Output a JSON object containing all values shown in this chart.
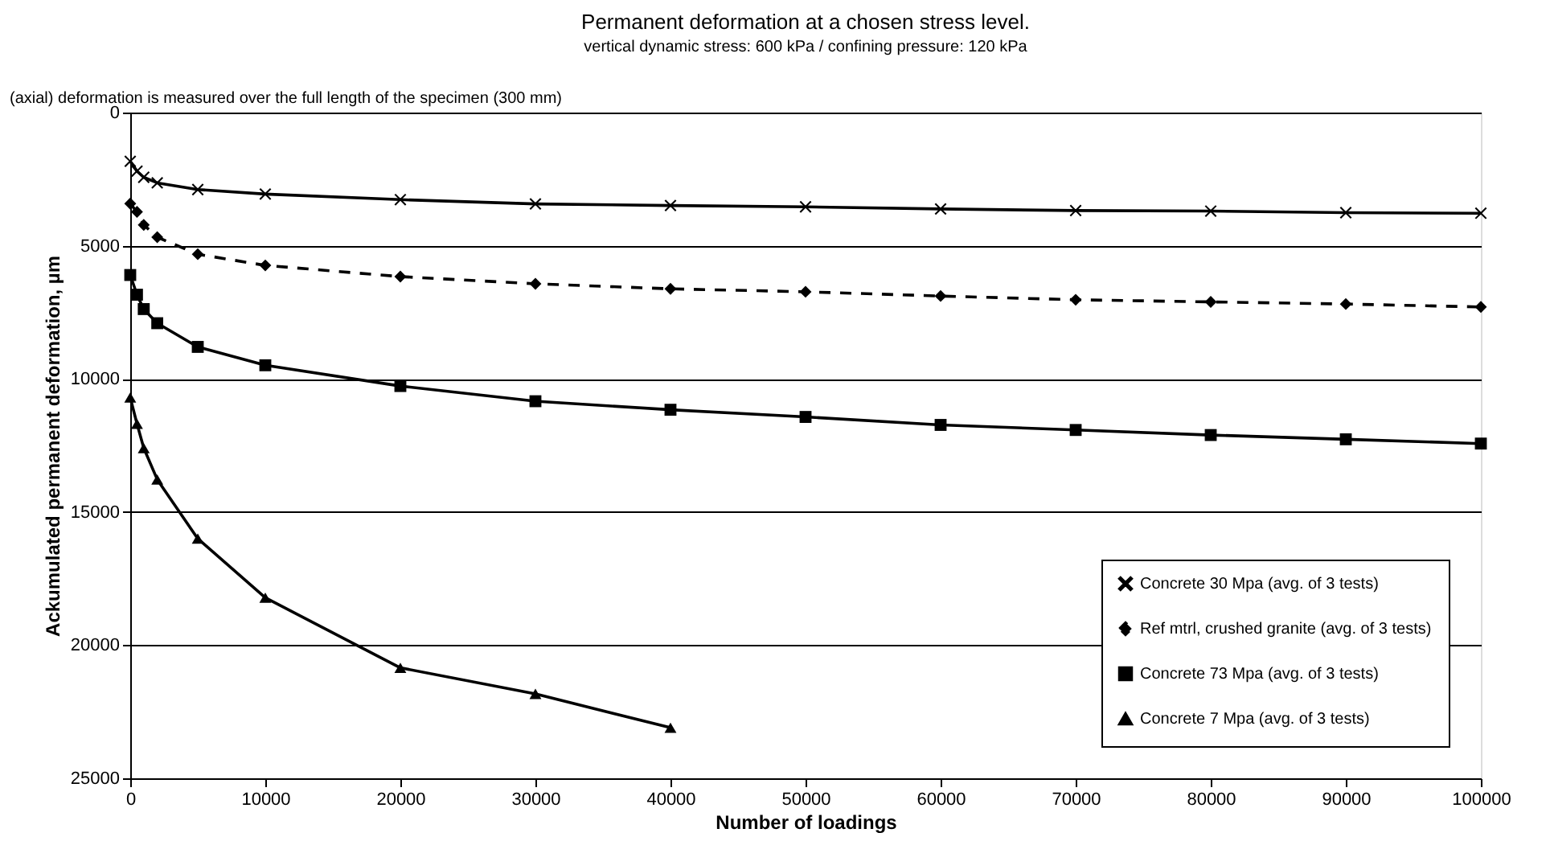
{
  "chart_data": {
    "type": "line",
    "title": "Permanent deformation at a chosen stress level.",
    "subtitle": "vertical dynamic stress: 600 kPa / confining pressure: 120 kPa",
    "annotations": [
      "(axial) deformation is measured over the full length of the specimen (300 mm)"
    ],
    "xlabel": "Number of loadings",
    "ylabel": "Ackumulated permanent deformation, µm",
    "xlim": [
      0,
      100000
    ],
    "xticks": [
      0,
      10000,
      20000,
      30000,
      40000,
      50000,
      60000,
      70000,
      80000,
      90000,
      100000
    ],
    "ylim": [
      25000,
      0
    ],
    "yticks": [
      0,
      5000,
      10000,
      15000,
      20000,
      25000
    ],
    "grid": "y",
    "legend": "bottom right",
    "series": [
      {
        "name": "Concrete 30 Mpa (avg. of 3 tests)",
        "color": "#000000",
        "marker": "cross",
        "line_style": "solid",
        "x": [
          0,
          500,
          1000,
          2000,
          5000,
          10000,
          20000,
          30000,
          40000,
          50000,
          60000,
          70000,
          80000,
          90000,
          100000
        ],
        "values": [
          1830,
          2200,
          2430,
          2640,
          2890,
          3060,
          3270,
          3430,
          3490,
          3540,
          3620,
          3680,
          3700,
          3760,
          3780
        ]
      },
      {
        "name": "Ref mtrl, crushed granite (avg. of 3 tests)",
        "color": "#000000",
        "marker": "diamond",
        "line_style": "dashed",
        "x": [
          0,
          500,
          1000,
          2000,
          5000,
          10000,
          20000,
          30000,
          40000,
          50000,
          60000,
          70000,
          80000,
          90000,
          100000
        ],
        "values": [
          3420,
          3730,
          4220,
          4680,
          5320,
          5740,
          6160,
          6430,
          6620,
          6730,
          6890,
          7030,
          7110,
          7190,
          7300
        ]
      },
      {
        "name": "Concrete 73 Mpa  (avg. of 3 tests)",
        "color": "#000000",
        "marker": "square",
        "line_style": "solid",
        "x": [
          0,
          500,
          1000,
          2000,
          5000,
          10000,
          20000,
          30000,
          40000,
          50000,
          60000,
          70000,
          80000,
          90000,
          100000
        ],
        "values": [
          6100,
          6840,
          7380,
          7910,
          8800,
          9490,
          10270,
          10840,
          11160,
          11430,
          11730,
          11920,
          12110,
          12270,
          12430
        ]
      },
      {
        "name": "Concrete 7 Mpa (avg. of 3 tests)",
        "color": "#000000",
        "marker": "triangle",
        "line_style": "solid",
        "x": [
          0,
          500,
          1000,
          2000,
          5000,
          10000,
          20000,
          30000,
          40000
        ],
        "values": [
          10700,
          11690,
          12600,
          13780,
          16000,
          18220,
          20850,
          21830,
          23100
        ]
      }
    ]
  }
}
